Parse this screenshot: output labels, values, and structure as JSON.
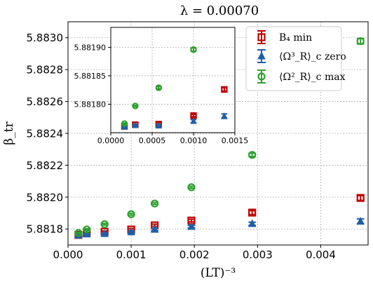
{
  "chart_data": [
    {
      "type": "scatter",
      "title": "λ = 0.00070",
      "xlabel": "(LT)⁻³",
      "ylabel": "β_tr",
      "xlim": [
        0.0,
        0.00475
      ],
      "ylim": [
        5.8817,
        5.8831
      ],
      "x_ticks": [
        0.0,
        0.001,
        0.002,
        0.003,
        0.004
      ],
      "x_tick_labels": [
        "0.000",
        "0.001",
        "0.002",
        "0.003",
        "0.004"
      ],
      "y_ticks": [
        5.8818,
        5.882,
        5.8822,
        5.8824,
        5.8826,
        5.8828,
        5.883
      ],
      "y_tick_labels": [
        "5.8818",
        "5.8820",
        "5.8822",
        "5.8824",
        "5.8826",
        "5.8828",
        "5.8830"
      ],
      "grid": true,
      "legend": {
        "placement": "top-right",
        "entries": [
          {
            "label": "B₄ min",
            "color": "#c00000",
            "marker": "square-open"
          },
          {
            "label": "⟨Ω³_R⟩_c zero",
            "color": "#1f5fa8",
            "marker": "triangle"
          },
          {
            "label": "⟨Ω²_R⟩_c max",
            "color": "#2ca02c",
            "marker": "circle-open"
          }
        ]
      },
      "series": [
        {
          "name": "B₄ min",
          "color": "#c00000",
          "marker": "square-open",
          "x": [
            0.000165,
            0.000296,
            0.000579,
            0.001,
            0.001372,
            0.001953,
            0.002915,
            0.00463
          ],
          "y": [
            5.881763,
            5.881775,
            5.881783,
            5.881797,
            5.881823,
            5.881853,
            5.881903,
            5.881995
          ],
          "yerr": [
            4e-06,
            4e-06,
            5e-06,
            6e-06,
            7e-06,
            8e-06,
            1.2e-05,
            1.5e-05
          ]
        },
        {
          "name": "⟨Ω³_R⟩_c zero",
          "color": "#1f5fa8",
          "marker": "triangle",
          "x": [
            0.000165,
            0.000296,
            0.000579,
            0.001,
            0.001372,
            0.001953,
            0.002915,
            0.00463
          ],
          "y": [
            5.88176,
            5.881768,
            5.88177,
            5.881781,
            5.881797,
            5.881815,
            5.881833,
            5.881848
          ],
          "yerr": [
            4e-06,
            4e-06,
            5e-06,
            6e-06,
            8e-06,
            8e-06,
            1e-05,
            1.6e-05
          ]
        },
        {
          "name": "⟨Ω²_R⟩_c max",
          "color": "#2ca02c",
          "marker": "circle-open",
          "x": [
            0.000165,
            0.000296,
            0.000579,
            0.001,
            0.001372,
            0.001953,
            0.002915,
            0.00463
          ],
          "y": [
            5.881775,
            5.881797,
            5.88183,
            5.881893,
            5.88196,
            5.882062,
            5.882265,
            5.882978
          ],
          "yerr": [
            4e-06,
            5e-06,
            5e-06,
            6e-06,
            6e-06,
            6e-06,
            1e-05,
            1.7e-05
          ]
        }
      ]
    },
    {
      "type": "scatter",
      "title": "",
      "xlim": [
        0.0,
        0.0015
      ],
      "ylim": [
        5.88175,
        5.881935
      ],
      "x_ticks": [
        0.0,
        0.0005,
        0.001,
        0.0015
      ],
      "x_tick_labels": [
        "0.0000",
        "0.0005",
        "0.0010",
        "0.0015"
      ],
      "y_ticks": [
        5.8818,
        5.88185,
        5.8819
      ],
      "y_tick_labels": [
        "5.88180",
        "5.88185",
        "5.88190"
      ],
      "grid": true,
      "series": [
        {
          "name": "B₄ min",
          "color": "#c00000",
          "marker": "square-open",
          "x": [
            0.000165,
            0.000296,
            0.000579,
            0.001,
            0.001372
          ],
          "y": [
            5.881761,
            5.881764,
            5.881765,
            5.88178,
            5.881826
          ],
          "yerr": [
            1e-06,
            1e-06,
            2e-06,
            2e-06,
            3e-06
          ]
        },
        {
          "name": "⟨Ω³_R⟩_c zero",
          "color": "#1f5fa8",
          "marker": "triangle",
          "x": [
            0.000165,
            0.000296,
            0.000579,
            0.001,
            0.001372
          ],
          "y": [
            5.88176,
            5.881763,
            5.881762,
            5.88177,
            5.881779
          ],
          "yerr": [
            1e-06,
            1e-06,
            2e-06,
            3e-06,
            4e-06
          ]
        },
        {
          "name": "⟨Ω²_R⟩_c max",
          "color": "#2ca02c",
          "marker": "circle-open",
          "x": [
            0.000165,
            0.000296,
            0.000579,
            0.001
          ],
          "y": [
            5.881766,
            5.881797,
            5.881829,
            5.881896
          ],
          "yerr": [
            1e-06,
            1e-06,
            2e-06,
            3e-06
          ]
        }
      ]
    }
  ]
}
